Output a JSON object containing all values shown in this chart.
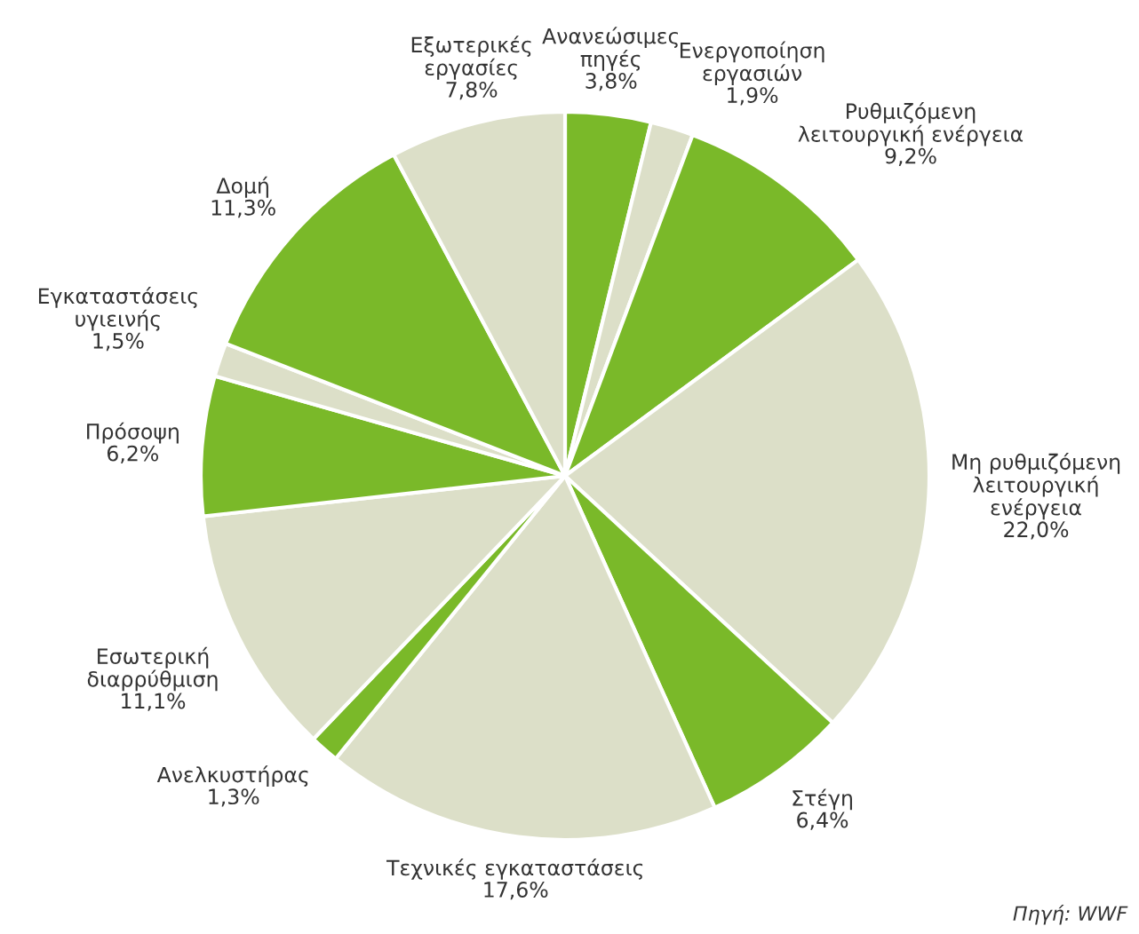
{
  "chart_data": {
    "type": "pie",
    "categories": [
      "Ανανεώσιμες\nπηγές",
      "Ενεργοποίηση\nεργασιών",
      "Ρυθμιζόμενη\nλειτουργική ενέργεια",
      "Μη ρυθμιζόμενη\nλειτουργική\nενέργεια",
      "Στέγη",
      "Τεχνικές εγκαταστάσεις",
      "Ανελκυστήρας",
      "Εσωτερική\nδιαρρύθμιση",
      "Πρόσοψη",
      "Εγκαταστάσεις\nυγιεινής",
      "Δομή",
      "Εξωτερικές\nεργασίες"
    ],
    "values": [
      3.8,
      1.9,
      9.2,
      22.0,
      6.4,
      17.6,
      1.3,
      11.1,
      6.2,
      1.5,
      11.3,
      7.8
    ],
    "value_labels": [
      "3,8%",
      "1,9%",
      "9,2%",
      "22,0%",
      "6,4%",
      "17,6%",
      "1,3%",
      "11,1%",
      "6,2%",
      "1,5%",
      "11,3%",
      "7,8%"
    ],
    "colors": [
      "#7ab929",
      "#dcdfc8",
      "#7ab929",
      "#dcdfc8",
      "#7ab929",
      "#dcdfc8",
      "#7ab929",
      "#dcdfc8",
      "#7ab929",
      "#dcdfc8",
      "#7ab929",
      "#dcdfc8"
    ],
    "annotations": [
      "Πηγή: WWF"
    ]
  }
}
